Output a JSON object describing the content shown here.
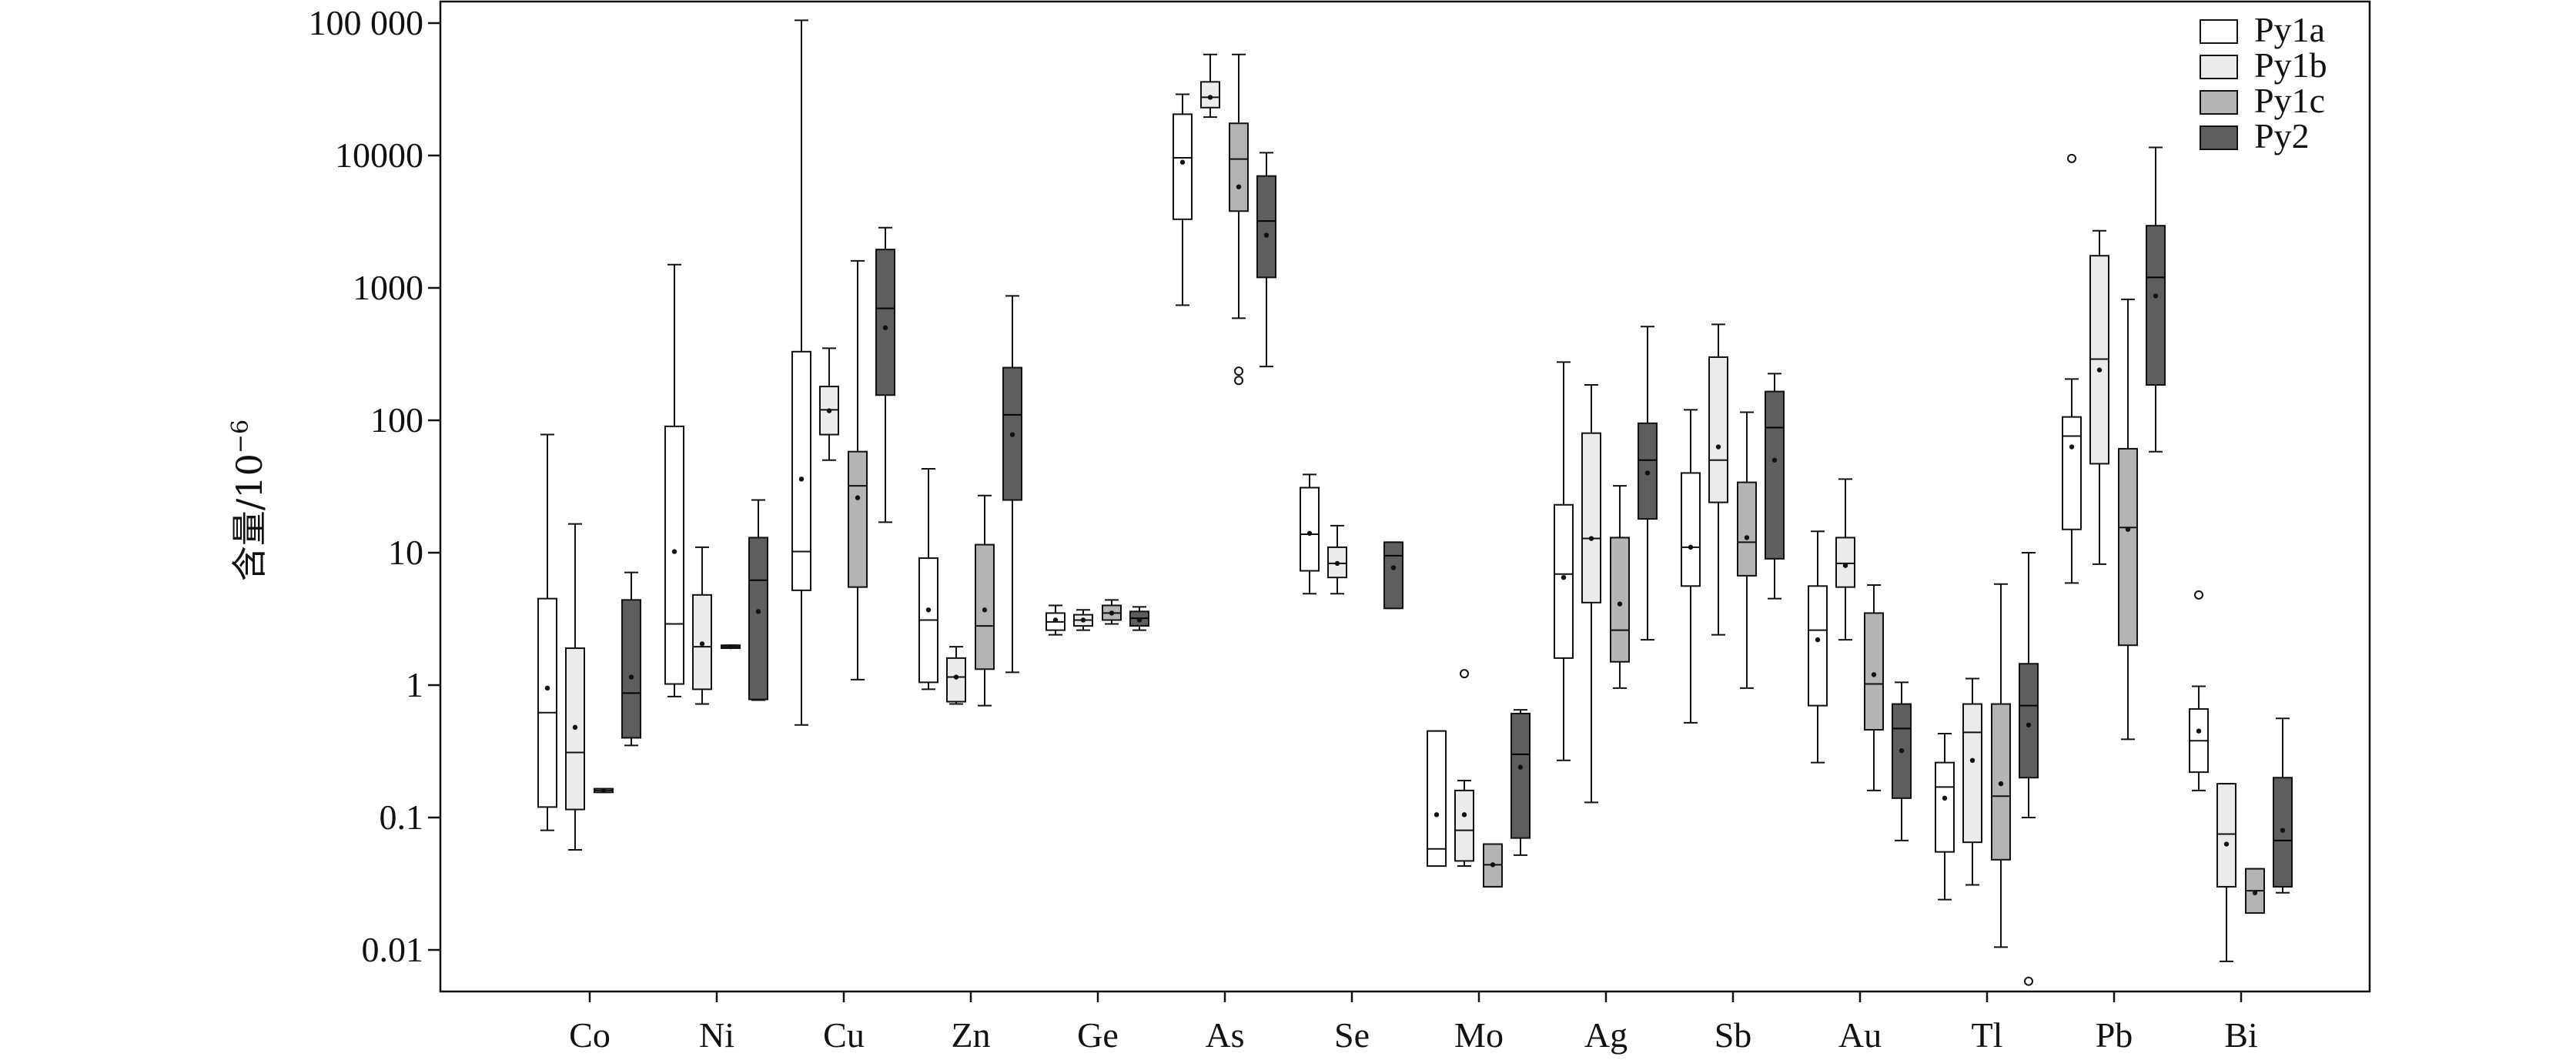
{
  "chart_data": {
    "type": "boxplot",
    "ylabel": "含量/10",
    "ylabel_sup": "−6",
    "yscale": "log",
    "ylim": [
      0.005,
      100000
    ],
    "yticks": [
      {
        "v": 100000,
        "label": "100 000"
      },
      {
        "v": 10000,
        "label": "10000"
      },
      {
        "v": 1000,
        "label": "1000"
      },
      {
        "v": 100,
        "label": "100"
      },
      {
        "v": 10,
        "label": "10"
      },
      {
        "v": 1,
        "label": "1"
      },
      {
        "v": 0.1,
        "label": "0.1"
      },
      {
        "v": 0.01,
        "label": "0.01"
      }
    ],
    "categories": [
      "Co",
      "Ni",
      "Cu",
      "Zn",
      "Ge",
      "As",
      "Se",
      "Mo",
      "Ag",
      "Sb",
      "Au",
      "Tl",
      "Pb",
      "Bi"
    ],
    "legend_position": "top-right",
    "series": [
      {
        "name": "Py1a",
        "color": "#ffffff",
        "boxes": [
          {
            "min": 0.08,
            "q1": 0.12,
            "median": 0.62,
            "q3": 4.5,
            "max": 78,
            "mean": 0.95,
            "outliers": []
          },
          {
            "min": 0.82,
            "q1": 1.02,
            "median": 2.9,
            "q3": 90,
            "max": 1500,
            "mean": 10.2,
            "outliers": []
          },
          {
            "min": 0.5,
            "q1": 5.2,
            "median": 10.2,
            "q3": 330,
            "max": 105000,
            "mean": 36,
            "outliers": []
          },
          {
            "min": 0.93,
            "q1": 1.05,
            "median": 3.1,
            "q3": 9.1,
            "max": 43,
            "mean": 3.7,
            "outliers": []
          },
          {
            "min": 2.4,
            "q1": 2.6,
            "median": 3.0,
            "q3": 3.5,
            "max": 4.0,
            "mean": 3.1,
            "outliers": []
          },
          {
            "min": 740,
            "q1": 3300,
            "median": 9600,
            "q3": 20500,
            "max": 29000,
            "mean": 8900,
            "outliers": []
          },
          {
            "min": 4.9,
            "q1": 7.3,
            "median": 13.8,
            "q3": 31,
            "max": 39,
            "mean": 14,
            "outliers": []
          },
          {
            "min": 0.043,
            "q1": 0.043,
            "median": 0.058,
            "q3": 0.45,
            "max": 0.45,
            "mean": 0.105,
            "outliers": []
          },
          {
            "min": 0.27,
            "q1": 1.6,
            "median": 6.9,
            "q3": 23,
            "max": 275,
            "mean": 6.5,
            "outliers": []
          },
          {
            "min": 0.52,
            "q1": 5.6,
            "median": 11,
            "q3": 40,
            "max": 120,
            "mean": 11,
            "outliers": []
          },
          {
            "min": 0.26,
            "q1": 0.7,
            "median": 2.6,
            "q3": 5.6,
            "max": 14.5,
            "mean": 2.2,
            "outliers": []
          },
          {
            "min": 0.024,
            "q1": 0.055,
            "median": 0.17,
            "q3": 0.26,
            "max": 0.43,
            "mean": 0.14,
            "outliers": []
          },
          {
            "min": 5.9,
            "q1": 15,
            "median": 76,
            "q3": 106,
            "max": 205,
            "mean": 63,
            "outliers": [
              9500
            ]
          },
          {
            "min": 0.16,
            "q1": 0.22,
            "median": 0.38,
            "q3": 0.66,
            "max": 0.98,
            "mean": 0.45,
            "outliers": [
              4.8
            ]
          }
        ]
      },
      {
        "name": "Py1b",
        "color": "#ebebeb",
        "boxes": [
          {
            "min": 0.057,
            "q1": 0.115,
            "median": 0.31,
            "q3": 1.9,
            "max": 16.5,
            "mean": 0.48,
            "outliers": []
          },
          {
            "min": 0.72,
            "q1": 0.93,
            "median": 1.95,
            "q3": 4.8,
            "max": 11,
            "mean": 2.05,
            "outliers": []
          },
          {
            "min": 50,
            "q1": 78,
            "median": 120,
            "q3": 180,
            "max": 350,
            "mean": 118,
            "outliers": []
          },
          {
            "min": 0.72,
            "q1": 0.75,
            "median": 1.15,
            "q3": 1.6,
            "max": 1.95,
            "mean": 1.15,
            "outliers": []
          },
          {
            "min": 2.6,
            "q1": 2.8,
            "median": 3.1,
            "q3": 3.4,
            "max": 3.7,
            "mean": 3.1,
            "outliers": []
          },
          {
            "min": 19500,
            "q1": 23000,
            "median": 27500,
            "q3": 36000,
            "max": 58000,
            "mean": 27500,
            "outliers": []
          },
          {
            "min": 4.9,
            "q1": 6.5,
            "median": 8.3,
            "q3": 11,
            "max": 16,
            "mean": 8.3,
            "outliers": []
          },
          {
            "min": 0.043,
            "q1": 0.047,
            "median": 0.08,
            "q3": 0.16,
            "max": 0.19,
            "mean": 0.105,
            "outliers": [
              1.22
            ]
          },
          {
            "min": 0.13,
            "q1": 4.2,
            "median": 12.8,
            "q3": 80,
            "max": 185,
            "mean": 12.8,
            "outliers": []
          },
          {
            "min": 2.4,
            "q1": 24,
            "median": 50,
            "q3": 300,
            "max": 530,
            "mean": 63,
            "outliers": []
          },
          {
            "min": 2.2,
            "q1": 5.5,
            "median": 8.3,
            "q3": 13,
            "max": 36,
            "mean": 8.0,
            "outliers": []
          },
          {
            "min": 0.031,
            "q1": 0.065,
            "median": 0.44,
            "q3": 0.72,
            "max": 1.12,
            "mean": 0.27,
            "outliers": []
          },
          {
            "min": 8.2,
            "q1": 47,
            "median": 290,
            "q3": 1750,
            "max": 2700,
            "mean": 240,
            "outliers": []
          },
          {
            "min": 0.0082,
            "q1": 0.03,
            "median": 0.075,
            "q3": 0.18,
            "max": 0.18,
            "mean": 0.063,
            "outliers": []
          }
        ]
      },
      {
        "name": "Py1c",
        "color": "#b4b4b4",
        "boxes": [
          {
            "min": 0.155,
            "q1": 0.155,
            "median": 0.16,
            "q3": 0.165,
            "max": 0.165,
            "mean": 0.16,
            "outliers": []
          },
          {
            "min": 1.9,
            "q1": 1.9,
            "median": 1.95,
            "q3": 2.0,
            "max": 2.0,
            "mean": 1.95,
            "outliers": []
          },
          {
            "min": 1.1,
            "q1": 5.5,
            "median": 32,
            "q3": 58,
            "max": 1600,
            "mean": 26,
            "outliers": []
          },
          {
            "min": 0.7,
            "q1": 1.32,
            "median": 2.8,
            "q3": 11.5,
            "max": 27,
            "mean": 3.7,
            "outliers": []
          },
          {
            "min": 2.9,
            "q1": 3.1,
            "median": 3.5,
            "q3": 4.0,
            "max": 4.4,
            "mean": 3.5,
            "outliers": []
          },
          {
            "min": 590,
            "q1": 3800,
            "median": 9400,
            "q3": 17500,
            "max": 58000,
            "mean": 5800,
            "outliers": [
              200,
              235
            ]
          },
          {
            "min": null,
            "q1": null,
            "median": null,
            "q3": null,
            "max": null,
            "mean": null,
            "outliers": []
          },
          {
            "min": 0.03,
            "q1": 0.03,
            "median": 0.044,
            "q3": 0.063,
            "max": 0.063,
            "mean": 0.044,
            "outliers": []
          },
          {
            "min": 0.95,
            "q1": 1.5,
            "median": 2.6,
            "q3": 13,
            "max": 32,
            "mean": 4.1,
            "outliers": []
          },
          {
            "min": 0.95,
            "q1": 6.7,
            "median": 12,
            "q3": 34,
            "max": 115,
            "mean": 13,
            "outliers": []
          },
          {
            "min": 0.16,
            "q1": 0.46,
            "median": 1.02,
            "q3": 3.5,
            "max": 5.7,
            "mean": 1.2,
            "outliers": []
          },
          {
            "min": 0.0105,
            "q1": 0.048,
            "median": 0.145,
            "q3": 0.72,
            "max": 5.8,
            "mean": 0.18,
            "outliers": []
          },
          {
            "min": 0.39,
            "q1": 2.0,
            "median": 15.5,
            "q3": 61,
            "max": 820,
            "mean": 15,
            "outliers": []
          },
          {
            "min": 0.019,
            "q1": 0.019,
            "median": 0.028,
            "q3": 0.041,
            "max": 0.041,
            "mean": 0.027,
            "outliers": []
          }
        ]
      },
      {
        "name": "Py2",
        "color": "#5e5e5e",
        "boxes": [
          {
            "min": 0.35,
            "q1": 0.4,
            "median": 0.87,
            "q3": 4.4,
            "max": 7.1,
            "mean": 1.15,
            "outliers": []
          },
          {
            "min": 0.77,
            "q1": 0.78,
            "median": 6.2,
            "q3": 13,
            "max": 25,
            "mean": 3.6,
            "outliers": []
          },
          {
            "min": 17,
            "q1": 155,
            "median": 700,
            "q3": 1950,
            "max": 2850,
            "mean": 500,
            "outliers": []
          },
          {
            "min": 1.25,
            "q1": 25,
            "median": 110,
            "q3": 250,
            "max": 870,
            "mean": 78,
            "outliers": []
          },
          {
            "min": 2.6,
            "q1": 2.8,
            "median": 3.2,
            "q3": 3.6,
            "max": 3.9,
            "mean": 3.1,
            "outliers": []
          },
          {
            "min": 255,
            "q1": 1200,
            "median": 3200,
            "q3": 7000,
            "max": 10500,
            "mean": 2500,
            "outliers": []
          },
          {
            "min": 3.8,
            "q1": 3.8,
            "median": 9.5,
            "q3": 12,
            "max": 12,
            "mean": 7.7,
            "outliers": []
          },
          {
            "min": 0.052,
            "q1": 0.07,
            "median": 0.3,
            "q3": 0.61,
            "max": 0.65,
            "mean": 0.24,
            "outliers": []
          },
          {
            "min": 2.2,
            "q1": 18,
            "median": 50,
            "q3": 95,
            "max": 510,
            "mean": 40,
            "outliers": []
          },
          {
            "min": 4.5,
            "q1": 9,
            "median": 88,
            "q3": 165,
            "max": 225,
            "mean": 50,
            "outliers": []
          },
          {
            "min": 0.067,
            "q1": 0.14,
            "median": 0.47,
            "q3": 0.72,
            "max": 1.05,
            "mean": 0.32,
            "outliers": []
          },
          {
            "min": 0.1,
            "q1": 0.2,
            "median": 0.7,
            "q3": 1.45,
            "max": 10,
            "mean": 0.5,
            "outliers": [
              0.0058
            ]
          },
          {
            "min": 58,
            "q1": 185,
            "median": 1200,
            "q3": 2950,
            "max": 11500,
            "mean": 870,
            "outliers": []
          },
          {
            "min": 0.027,
            "q1": 0.03,
            "median": 0.067,
            "q3": 0.2,
            "max": 0.56,
            "mean": 0.08,
            "outliers": []
          }
        ]
      }
    ]
  }
}
